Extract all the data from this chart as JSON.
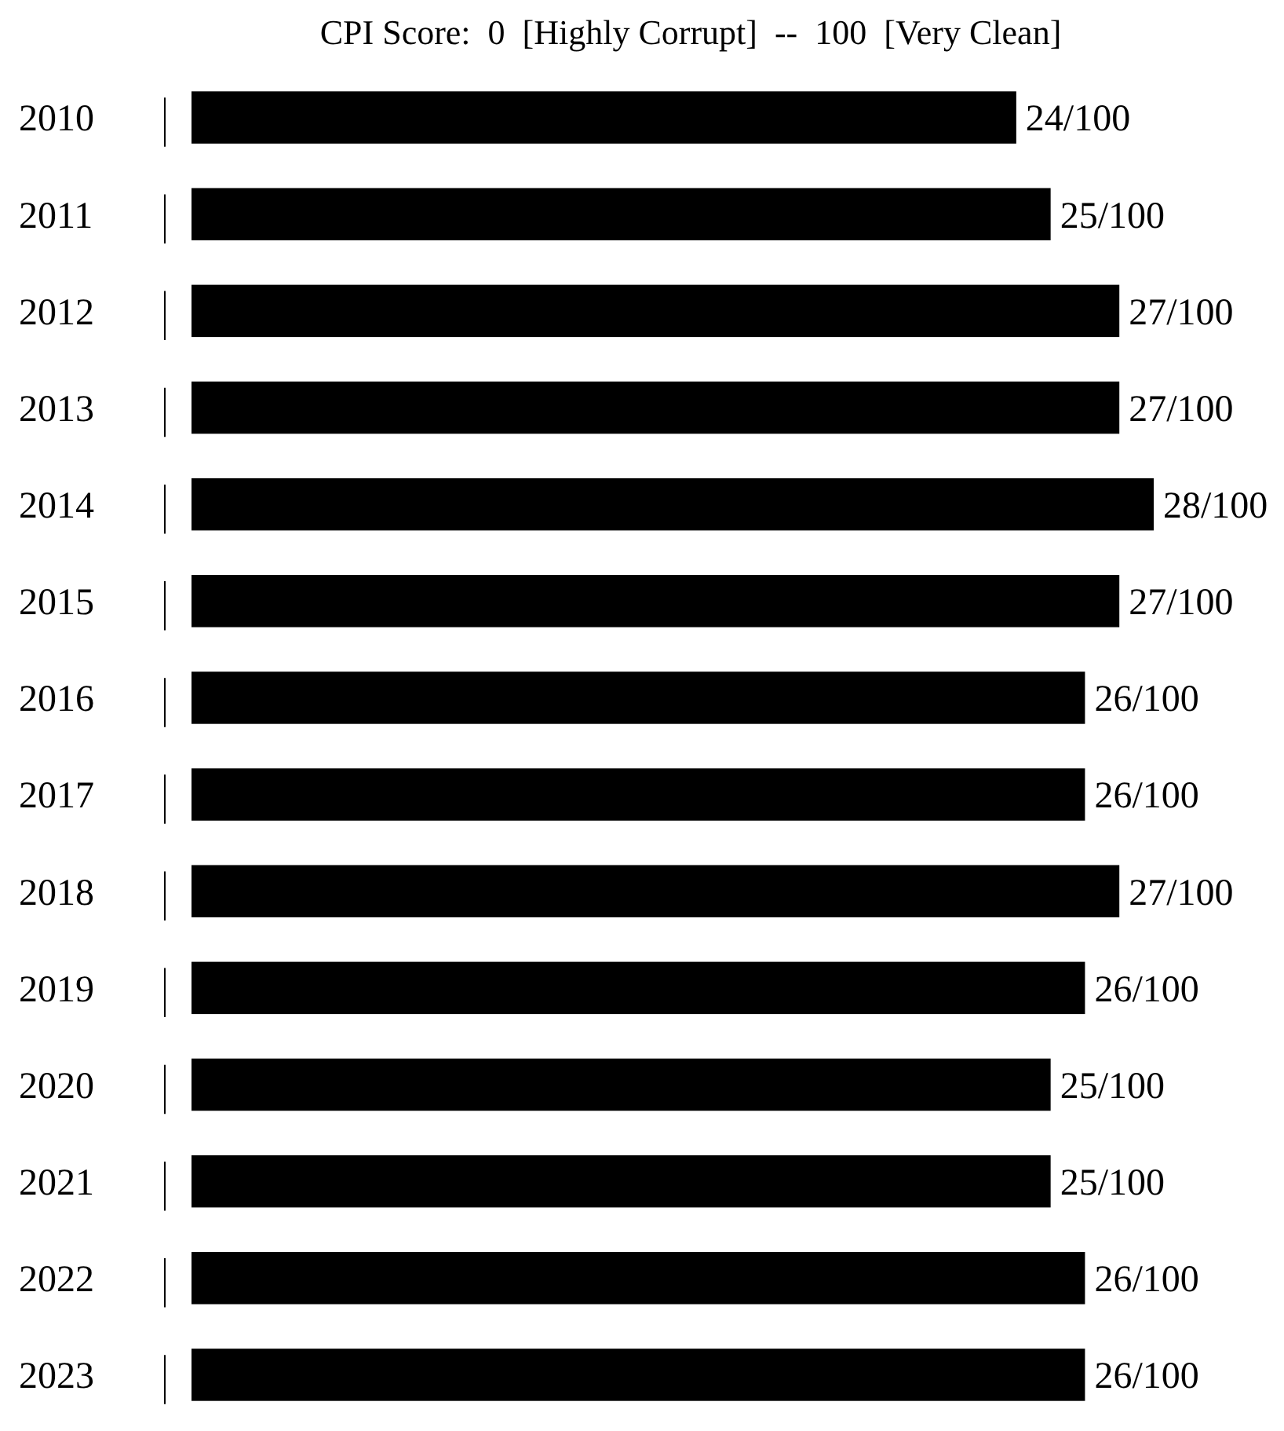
{
  "chart_data": {
    "type": "bar",
    "orientation": "horizontal",
    "title": "CPI Score:  0  [Highly Corrupt]  --  100  [Very Clean]",
    "categories": [
      "2010",
      "2011",
      "2012",
      "2013",
      "2014",
      "2015",
      "2016",
      "2017",
      "2018",
      "2019",
      "2020",
      "2021",
      "2022",
      "2023"
    ],
    "values": [
      24,
      25,
      27,
      27,
      28,
      27,
      26,
      26,
      27,
      26,
      25,
      25,
      26,
      26
    ],
    "value_labels": [
      "24/100",
      "25/100",
      "27/100",
      "27/100",
      "28/100",
      "27/100",
      "26/100",
      "26/100",
      "27/100",
      "26/100",
      "25/100",
      "25/100",
      "26/100",
      "26/100"
    ],
    "color": "#000000"
  }
}
